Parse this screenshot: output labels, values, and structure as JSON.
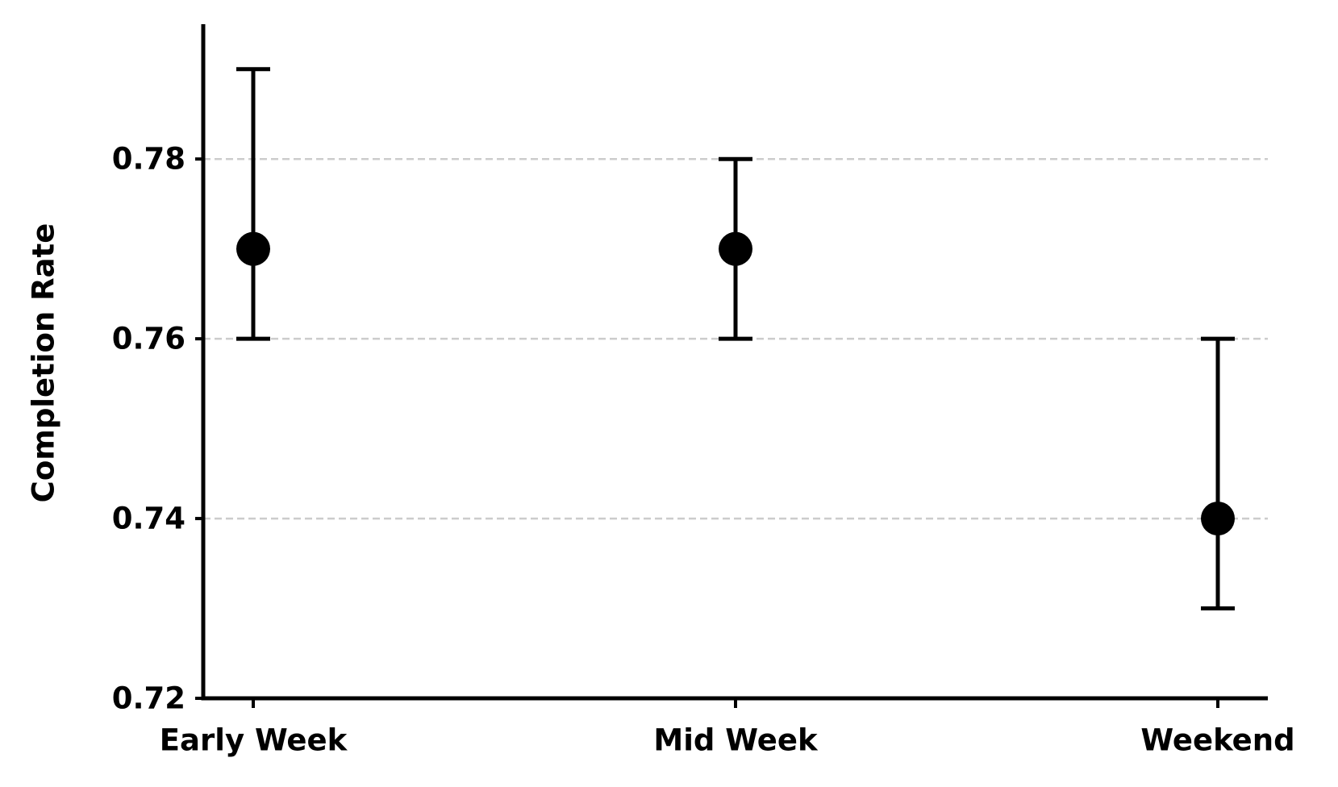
{
  "chart_data": {
    "type": "errorbar",
    "ylabel": "Completion Rate",
    "categories": [
      "Early Week",
      "Mid Week",
      "Weekend"
    ],
    "values": [
      0.77,
      0.77,
      0.74
    ],
    "errors_lower": [
      0.01,
      0.01,
      0.01
    ],
    "errors_upper": [
      0.02,
      0.01,
      0.02
    ],
    "color": "#000000",
    "ylim": [
      0.72,
      0.795
    ],
    "yticks": [
      0.72,
      0.74,
      0.76,
      0.78
    ],
    "grid": true
  }
}
